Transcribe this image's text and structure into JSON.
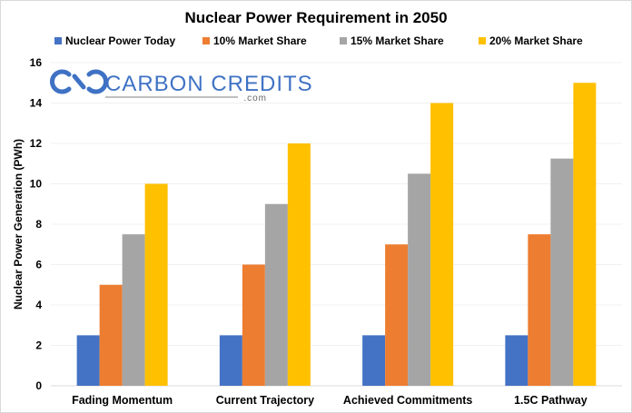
{
  "chart_data": {
    "type": "bar",
    "title": "Nuclear Power Requirement in 2050",
    "xlabel": "",
    "ylabel": "Nuclear Power Generation (PWh)",
    "ylim": [
      0,
      16
    ],
    "yticks": [
      0,
      2,
      4,
      6,
      8,
      10,
      12,
      14,
      16
    ],
    "grid": true,
    "legend_position": "top",
    "categories": [
      "Fading Momentum",
      "Current Trajectory",
      "Achieved Commitments",
      "1.5C Pathway"
    ],
    "series": [
      {
        "name": "Nuclear Power Today",
        "color": "#4472c4",
        "values": [
          2.5,
          2.5,
          2.5,
          2.5
        ]
      },
      {
        "name": "10% Market Share",
        "color": "#ed7d31",
        "values": [
          5,
          6,
          7,
          7.5
        ]
      },
      {
        "name": "15% Market Share",
        "color": "#a5a5a5",
        "values": [
          7.5,
          9,
          10.5,
          11.25
        ]
      },
      {
        "name": "20% Market Share",
        "color": "#ffc000",
        "values": [
          10,
          12,
          14,
          15
        ]
      }
    ]
  },
  "watermark": {
    "text": "CARBON CREDITS",
    "subtext": ".com",
    "color": "#3f72c4"
  }
}
